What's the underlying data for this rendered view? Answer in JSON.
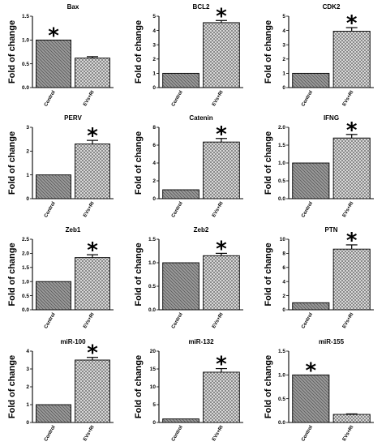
{
  "chart_data": [
    {
      "type": "bar",
      "title": "Bax",
      "ylabel": "Fold of change",
      "categories": [
        "Control",
        "EVs+RI"
      ],
      "values": [
        1.0,
        0.62
      ],
      "errors": [
        0,
        0.03
      ],
      "ylim": [
        0,
        1.5
      ],
      "yticks": [
        "0.0",
        "0.5",
        "1.0",
        "1.5"
      ],
      "significant": [
        true,
        false
      ],
      "grid": false
    },
    {
      "type": "bar",
      "title": "BCL2",
      "ylabel": "Fold of change",
      "categories": [
        "Control",
        "EVs+RI"
      ],
      "values": [
        1.0,
        4.55
      ],
      "errors": [
        0,
        0.15
      ],
      "ylim": [
        0,
        5
      ],
      "yticks": [
        "0",
        "1",
        "2",
        "3",
        "4",
        "5"
      ],
      "significant": [
        false,
        true
      ],
      "grid": false
    },
    {
      "type": "bar",
      "title": "CDK2",
      "ylabel": "Fold of change",
      "categories": [
        "Control",
        "EVs+RI"
      ],
      "values": [
        1.0,
        3.95
      ],
      "errors": [
        0,
        0.25
      ],
      "ylim": [
        0,
        5
      ],
      "yticks": [
        "0",
        "1",
        "2",
        "3",
        "4",
        "5"
      ],
      "significant": [
        false,
        true
      ],
      "grid": false
    },
    {
      "type": "bar",
      "title": "PERV",
      "ylabel": "Fold of change",
      "categories": [
        "Control",
        "EVs+RI"
      ],
      "values": [
        1.0,
        2.3
      ],
      "errors": [
        0,
        0.15
      ],
      "ylim": [
        0,
        3
      ],
      "yticks": [
        "0",
        "1",
        "2",
        "3"
      ],
      "significant": [
        false,
        true
      ],
      "grid": false
    },
    {
      "type": "bar",
      "title": "Catenin",
      "ylabel": "Fold of change",
      "categories": [
        "Control",
        "EVs+RI"
      ],
      "values": [
        1.0,
        6.35
      ],
      "errors": [
        0,
        0.4
      ],
      "ylim": [
        0,
        8
      ],
      "yticks": [
        "0",
        "2",
        "4",
        "6",
        "8"
      ],
      "significant": [
        false,
        true
      ],
      "grid": false
    },
    {
      "type": "bar",
      "title": "IFNG",
      "ylabel": "Fold of change",
      "categories": [
        "Control",
        "EVs+RI"
      ],
      "values": [
        1.0,
        1.7
      ],
      "errors": [
        0,
        0.1
      ],
      "ylim": [
        0,
        2.0
      ],
      "yticks": [
        "0.0",
        "0.5",
        "1.0",
        "1.5",
        "2.0"
      ],
      "significant": [
        false,
        true
      ],
      "grid": false
    },
    {
      "type": "bar",
      "title": "Zeb1",
      "ylabel": "Fold of change",
      "categories": [
        "Control",
        "EVs+RI"
      ],
      "values": [
        1.0,
        1.85
      ],
      "errors": [
        0,
        0.1
      ],
      "ylim": [
        0,
        2.5
      ],
      "yticks": [
        "0.0",
        "0.5",
        "1.0",
        "1.5",
        "2.0",
        "2.5"
      ],
      "significant": [
        false,
        true
      ],
      "grid": false
    },
    {
      "type": "bar",
      "title": "Zeb2",
      "ylabel": "Fold of change",
      "categories": [
        "Control",
        "EVs+RI"
      ],
      "values": [
        1.0,
        1.15
      ],
      "errors": [
        0,
        0.05
      ],
      "ylim": [
        0,
        1.5
      ],
      "yticks": [
        "0.0",
        "0.5",
        "1.0",
        "1.5"
      ],
      "significant": [
        false,
        true
      ],
      "grid": false
    },
    {
      "type": "bar",
      "title": "PTN",
      "ylabel": "Fold of change",
      "categories": [
        "Control",
        "EVs+RI"
      ],
      "values": [
        1.0,
        8.6
      ],
      "errors": [
        0,
        0.6
      ],
      "ylim": [
        0,
        10
      ],
      "yticks": [
        "0",
        "2",
        "4",
        "6",
        "8",
        "10"
      ],
      "significant": [
        false,
        true
      ],
      "grid": false
    },
    {
      "type": "bar",
      "title": "miR-100",
      "ylabel": "Fold of change",
      "categories": [
        "Control",
        "EVs+RI"
      ],
      "values": [
        1.0,
        3.5
      ],
      "errors": [
        0,
        0.15
      ],
      "ylim": [
        0,
        4
      ],
      "yticks": [
        "0",
        "1",
        "2",
        "3",
        "4"
      ],
      "significant": [
        false,
        true
      ],
      "grid": false
    },
    {
      "type": "bar",
      "title": "miR-132",
      "ylabel": "Fold of change",
      "categories": [
        "Control",
        "EVs+RI"
      ],
      "values": [
        1.0,
        14.1
      ],
      "errors": [
        0,
        1.0
      ],
      "ylim": [
        0,
        20
      ],
      "yticks": [
        "0",
        "5",
        "10",
        "15",
        "20"
      ],
      "significant": [
        false,
        true
      ],
      "grid": false
    },
    {
      "type": "bar",
      "title": "miR-155",
      "ylabel": "Fold of change",
      "categories": [
        "Control",
        "EVs+RI"
      ],
      "values": [
        1.0,
        0.17
      ],
      "errors": [
        0,
        0.01
      ],
      "ylim": [
        0,
        1.5
      ],
      "yticks": [
        "0.0",
        "0.5",
        "1.0",
        "1.5"
      ],
      "significant": [
        true,
        false
      ],
      "grid": false
    }
  ],
  "significance_marker": "*",
  "colors": {
    "control_fill": "#909090",
    "treated_fill": "#c4c4c4",
    "axis": "#000000"
  }
}
